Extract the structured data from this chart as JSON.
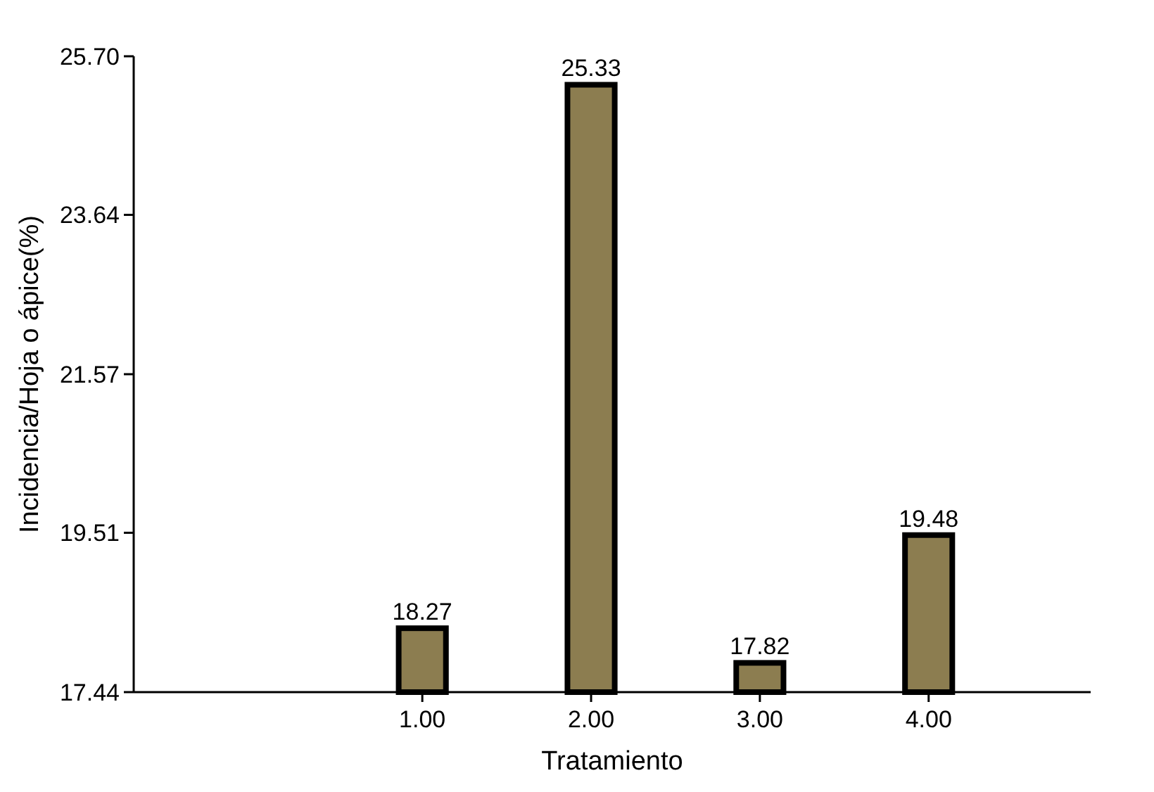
{
  "chart_data": {
    "type": "bar",
    "xlabel": "Tratamiento",
    "ylabel": "Incidencia/Hoja o ápice(%)",
    "x": [
      1,
      2,
      3,
      4
    ],
    "values": [
      18.27,
      25.33,
      17.82,
      19.48
    ],
    "color": "#8c7d50",
    "data_labels": true,
    "xlim": [
      -0.71,
      4.96
    ],
    "xticks": [
      {
        "value": 1,
        "label": "1.00"
      },
      {
        "value": 2,
        "label": "2.00"
      },
      {
        "value": 3,
        "label": "3.00"
      },
      {
        "value": 4,
        "label": "4.00"
      }
    ],
    "ylim": [
      17.44,
      25.7
    ],
    "yticks": [
      {
        "value": 17.44,
        "label": "17.44"
      },
      {
        "value": 19.51,
        "label": "19.51"
      },
      {
        "value": 21.57,
        "label": "21.57"
      },
      {
        "value": 23.64,
        "label": "23.64"
      },
      {
        "value": 25.7,
        "label": "25.70"
      }
    ],
    "grid": false
  }
}
